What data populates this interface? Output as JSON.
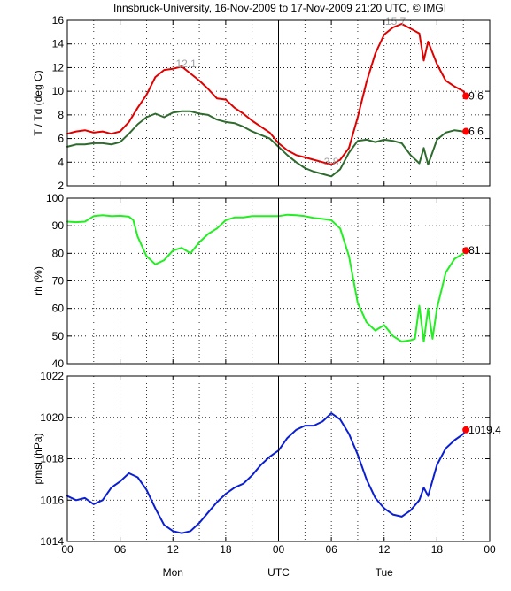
{
  "title": "Innsbruck-University, 16-Nov-2009 to 17-Nov-2009 21:20 UTC, © IMGI",
  "colors": {
    "temperature": "#e00000",
    "dewpoint": "#2f6b2f",
    "humidity": "#22ee22",
    "pressure": "#0a1ed2",
    "marker": "#ff0000",
    "grid": "#000000",
    "extreme_label": "#a0a0a0"
  },
  "x_axis": {
    "range_hours": [
      0,
      48
    ],
    "tick_hours": [
      0,
      6,
      12,
      18,
      24,
      30,
      36,
      42,
      48
    ],
    "tick_labels": [
      "00",
      "06",
      "12",
      "18",
      "00",
      "06",
      "12",
      "18",
      "00"
    ],
    "day_labels": [
      {
        "hour": 12,
        "text": "Mon"
      },
      {
        "hour": 24,
        "text": "UTC"
      },
      {
        "hour": 36,
        "text": "Tue"
      }
    ],
    "day_separator_hour": 24
  },
  "chart_data": [
    {
      "type": "line",
      "ylabel": "T / Td (deg C)",
      "ylim": [
        2,
        16
      ],
      "yticks": [
        2,
        4,
        6,
        8,
        10,
        12,
        14,
        16
      ],
      "grid": "dotted",
      "series": [
        {
          "key": "temperature",
          "color": "#e00000",
          "x": [
            0,
            1,
            2,
            3,
            4,
            5,
            6,
            7,
            8,
            9,
            10,
            11,
            12,
            13,
            14,
            15,
            16,
            17,
            18,
            19,
            20,
            21,
            22,
            23,
            24,
            25,
            26,
            27,
            28,
            29,
            30,
            31,
            32,
            33,
            34,
            35,
            36,
            37,
            38,
            39,
            40,
            40.5,
            41,
            42,
            43,
            44,
            45,
            45.3
          ],
          "y": [
            6.4,
            6.6,
            6.7,
            6.5,
            6.6,
            6.4,
            6.6,
            7.4,
            8.6,
            9.7,
            11.2,
            11.8,
            11.9,
            12.1,
            11.5,
            10.9,
            10.2,
            9.4,
            9.3,
            8.6,
            8.1,
            7.5,
            7.0,
            6.5,
            5.6,
            5.0,
            4.6,
            4.4,
            4.2,
            4.0,
            3.8,
            4.2,
            5.2,
            7.8,
            10.8,
            13.2,
            14.8,
            15.4,
            15.7,
            15.3,
            14.9,
            12.6,
            14.2,
            12.3,
            10.9,
            10.4,
            10.0,
            9.6
          ]
        },
        {
          "key": "dewpoint",
          "color": "#2f6b2f",
          "x": [
            0,
            1,
            2,
            3,
            4,
            5,
            6,
            7,
            8,
            9,
            10,
            11,
            12,
            13,
            14,
            15,
            16,
            17,
            18,
            19,
            20,
            21,
            22,
            23,
            24,
            25,
            26,
            27,
            28,
            29,
            30,
            31,
            32,
            33,
            34,
            35,
            36,
            37,
            38,
            39,
            40,
            40.5,
            41,
            42,
            43,
            44,
            45,
            45.3
          ],
          "y": [
            5.3,
            5.5,
            5.5,
            5.6,
            5.6,
            5.5,
            5.7,
            6.4,
            7.2,
            7.8,
            8.1,
            7.8,
            8.2,
            8.3,
            8.3,
            8.1,
            8.0,
            7.6,
            7.4,
            7.3,
            7.0,
            6.6,
            6.3,
            6.0,
            5.3,
            4.6,
            4.0,
            3.5,
            3.2,
            3.0,
            2.8,
            3.4,
            4.8,
            5.8,
            5.9,
            5.7,
            5.9,
            5.8,
            5.6,
            4.6,
            3.9,
            5.2,
            3.8,
            5.9,
            6.5,
            6.7,
            6.6,
            6.6
          ]
        }
      ],
      "annotations": [
        {
          "hour": 13.5,
          "value": 12.1,
          "text": "12.1"
        },
        {
          "hour": 30.0,
          "value": 3.8,
          "text": "3.8"
        },
        {
          "hour": 37.3,
          "value": 15.7,
          "text": "15.7"
        }
      ],
      "end_labels": [
        {
          "series": "temperature",
          "hour": 45.3,
          "value": 9.6,
          "text": "9.6"
        },
        {
          "series": "dewpoint",
          "hour": 45.3,
          "value": 6.6,
          "text": "6.6"
        }
      ]
    },
    {
      "type": "line",
      "ylabel": "rh (%)",
      "ylim": [
        40,
        100
      ],
      "yticks": [
        40,
        50,
        60,
        70,
        80,
        90,
        100
      ],
      "grid": "dotted",
      "series": [
        {
          "key": "humidity",
          "color": "#22ee22",
          "x": [
            0,
            1,
            2,
            3,
            4,
            5,
            6,
            7,
            7.5,
            8,
            9,
            10,
            11,
            12,
            13,
            14,
            15,
            16,
            17,
            18,
            19,
            20,
            21,
            22,
            23,
            24,
            25,
            26,
            27,
            28,
            29,
            30,
            31,
            32,
            33,
            34,
            35,
            36,
            37,
            38,
            39,
            39.5,
            40,
            40.5,
            41,
            41.5,
            42,
            43,
            44,
            45,
            45.3
          ],
          "y": [
            91.5,
            91.3,
            91.5,
            93.5,
            93.8,
            93.5,
            93.6,
            93.3,
            92.0,
            86.0,
            79.0,
            76.0,
            77.5,
            81.0,
            82.0,
            80.0,
            84.0,
            87.0,
            89.0,
            92.0,
            93.0,
            93.0,
            93.5,
            93.5,
            93.5,
            93.5,
            94.0,
            93.8,
            93.5,
            92.8,
            92.5,
            92.0,
            89.0,
            79.0,
            62.0,
            55.0,
            52.0,
            54.0,
            50.0,
            48.0,
            48.5,
            49.0,
            61.0,
            48.0,
            60.0,
            49.0,
            60.0,
            73.0,
            78.0,
            80.0,
            81.0
          ]
        }
      ],
      "annotations": [],
      "end_labels": [
        {
          "series": "humidity",
          "hour": 45.3,
          "value": 81,
          "text": "81"
        }
      ]
    },
    {
      "type": "line",
      "ylabel": "pmsl (hPa)",
      "ylim": [
        1014,
        1022
      ],
      "yticks": [
        1014,
        1016,
        1018,
        1020,
        1022
      ],
      "grid": "dotted",
      "series": [
        {
          "key": "pressure",
          "color": "#0a1ed2",
          "x": [
            0,
            1,
            2,
            3,
            4,
            5,
            6,
            7,
            8,
            9,
            10,
            11,
            12,
            13,
            14,
            15,
            16,
            17,
            18,
            19,
            20,
            21,
            22,
            23,
            24,
            25,
            26,
            27,
            28,
            29,
            30,
            31,
            32,
            33,
            34,
            35,
            36,
            37,
            38,
            39,
            40,
            40.5,
            41,
            42,
            43,
            44,
            45,
            45.3
          ],
          "y": [
            1016.2,
            1016.0,
            1016.1,
            1015.8,
            1016.0,
            1016.6,
            1016.9,
            1017.3,
            1017.1,
            1016.5,
            1015.6,
            1014.8,
            1014.5,
            1014.4,
            1014.5,
            1014.9,
            1015.4,
            1015.9,
            1016.3,
            1016.6,
            1016.8,
            1017.2,
            1017.7,
            1018.1,
            1018.4,
            1019.0,
            1019.4,
            1019.6,
            1019.6,
            1019.8,
            1020.2,
            1019.9,
            1019.2,
            1018.2,
            1017.0,
            1016.1,
            1015.6,
            1015.3,
            1015.2,
            1015.5,
            1016.0,
            1016.6,
            1016.2,
            1017.7,
            1018.5,
            1018.9,
            1019.2,
            1019.4
          ]
        }
      ],
      "annotations": [],
      "end_labels": [
        {
          "series": "pressure",
          "hour": 45.3,
          "value": 1019.4,
          "text": "1019.4"
        }
      ]
    }
  ]
}
